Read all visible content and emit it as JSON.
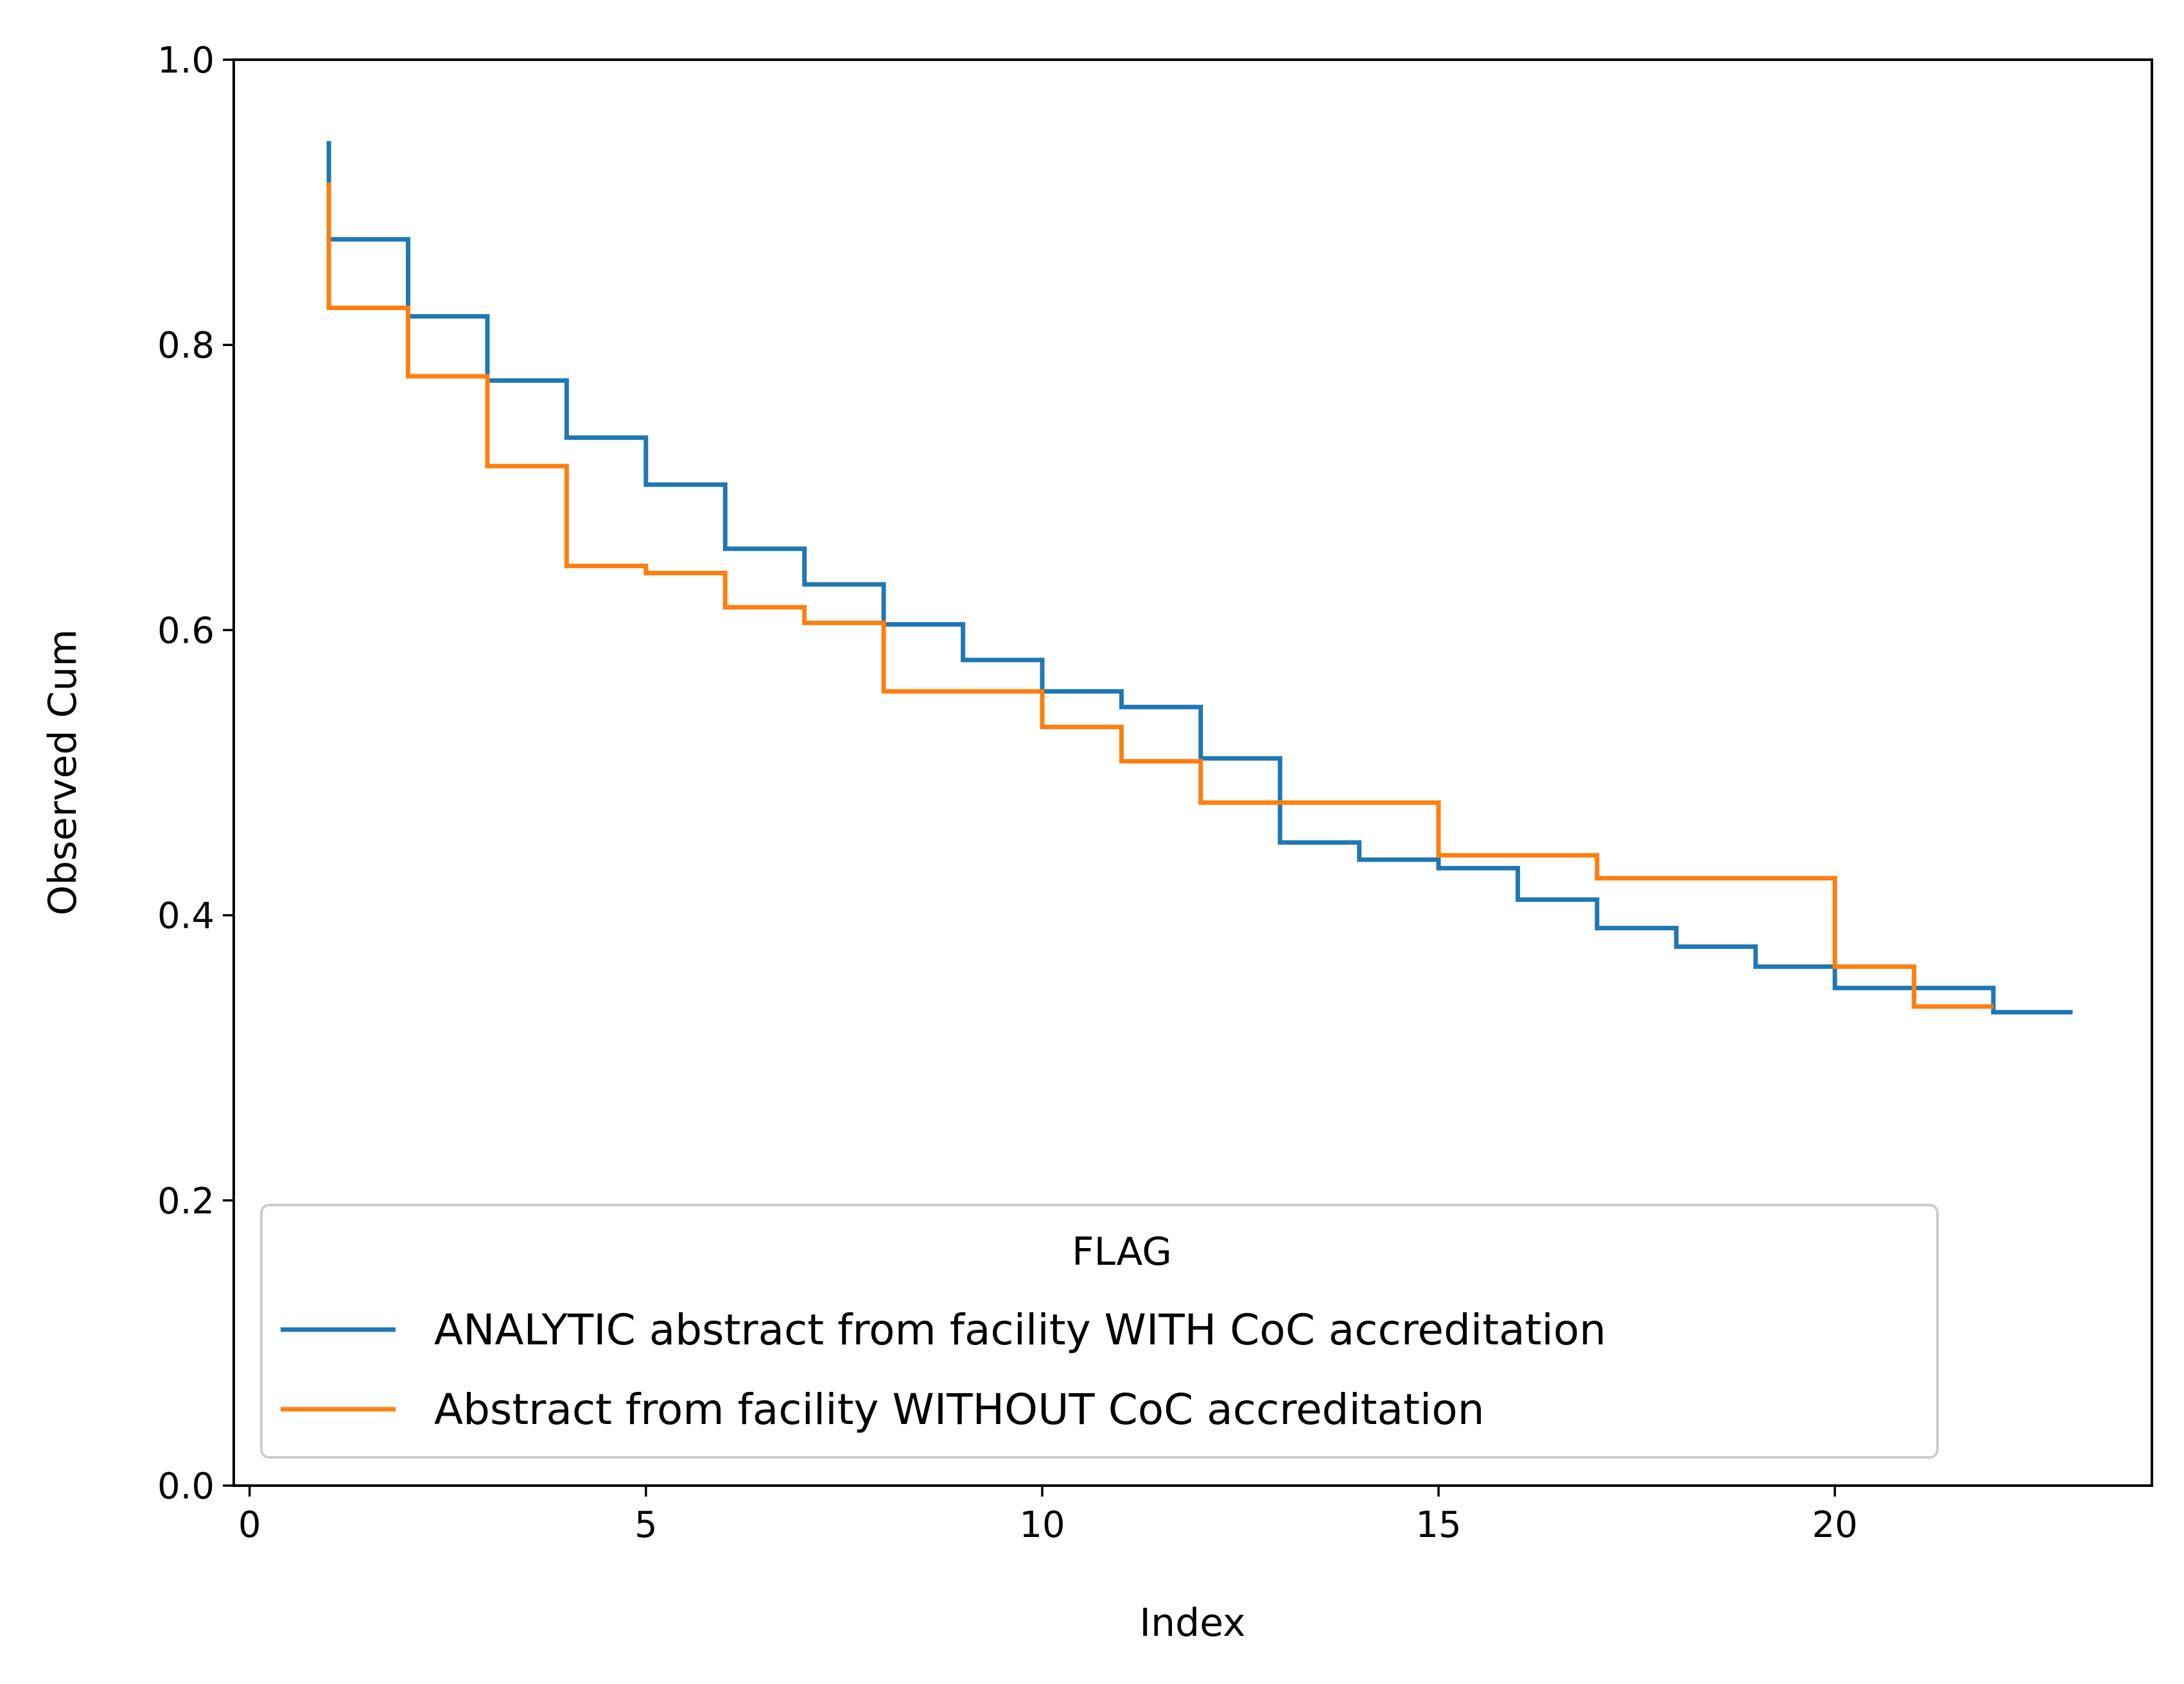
{
  "chart_data": {
    "type": "line",
    "style": "step-post",
    "title": "",
    "xlabel": "Index",
    "ylabel": "Observed Cum",
    "xlim": [
      -0.2,
      24.0
    ],
    "ylim": [
      0.0,
      1.0
    ],
    "xticks": [
      0,
      5,
      10,
      15,
      20
    ],
    "yticks": [
      0.0,
      0.2,
      0.4,
      0.6,
      0.8,
      1.0
    ],
    "xtick_labels": [
      "0",
      "5",
      "10",
      "15",
      "20"
    ],
    "ytick_labels": [
      "0.0",
      "0.2",
      "0.4",
      "0.6",
      "0.8",
      "1.0"
    ],
    "grid": false,
    "legend": {
      "title": "FLAG",
      "placement": "lower-left"
    },
    "series": [
      {
        "name": "ANALYTIC abstract from facility WITH CoC accreditation",
        "color": "#1f77b4",
        "start": 0.943,
        "x": [
          1,
          2,
          3,
          4,
          5,
          6,
          7,
          8,
          9,
          10,
          11,
          12,
          13,
          14,
          15,
          16,
          17,
          18,
          19,
          20,
          21,
          22,
          23
        ],
        "y": [
          0.874,
          0.82,
          0.775,
          0.735,
          0.702,
          0.657,
          0.632,
          0.604,
          0.579,
          0.557,
          0.546,
          0.51,
          0.451,
          0.439,
          0.433,
          0.411,
          0.391,
          0.378,
          0.364,
          0.349,
          0.349,
          0.332,
          0.332
        ]
      },
      {
        "name": "Abstract from facility WITHOUT CoC accreditation",
        "color": "#ff7f0e",
        "start": 0.914,
        "x": [
          1,
          2,
          3,
          4,
          5,
          6,
          7,
          8,
          9,
          10,
          11,
          12,
          13,
          14,
          15,
          16,
          17,
          18,
          19,
          20,
          21,
          22
        ],
        "y": [
          0.826,
          0.778,
          0.715,
          0.645,
          0.64,
          0.616,
          0.605,
          0.557,
          0.557,
          0.532,
          0.508,
          0.479,
          0.479,
          0.479,
          0.442,
          0.442,
          0.426,
          0.426,
          0.426,
          0.364,
          0.336,
          0.336
        ]
      }
    ]
  }
}
